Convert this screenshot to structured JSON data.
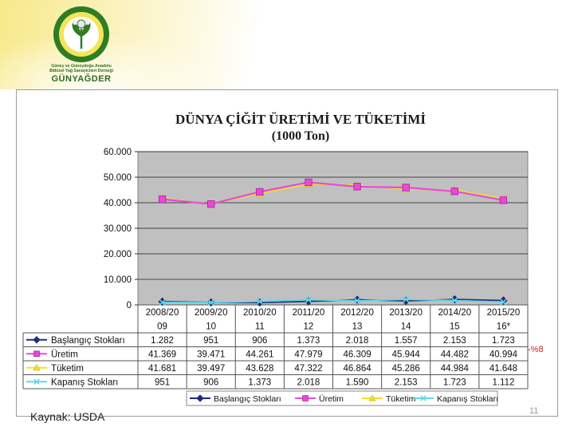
{
  "header": {
    "logo_line1": "Güney ve Güneydoğu Anadolu",
    "logo_line2": "Bitkisel Yağ Sanayicileri Derneği",
    "logo_brand": "GÜNYAĞDER"
  },
  "source": "Kaynak: USDA",
  "side_note": "-%8",
  "page_number": "11",
  "colors": {
    "plot_bg": "#c0c0c0",
    "baslangic": "#1f2f7a",
    "uretim": "#e64ad6",
    "tuketim": "#f0e030",
    "kapanis": "#66d6e8",
    "title": "#1a1a1a"
  },
  "chart_data": {
    "type": "line",
    "title_line1": "DÜNYA ÇİĞİT ÜRETİMİ VE TÜKETİMİ",
    "title_line2": "(1000 Ton)",
    "ylim": [
      0,
      60000
    ],
    "grid": true,
    "y_ticks": [
      "0",
      "10.000",
      "20.000",
      "30.000",
      "40.000",
      "50.000",
      "60.000"
    ],
    "categories": [
      [
        "2008/20",
        "09"
      ],
      [
        "2009/20",
        "10"
      ],
      [
        "2010/20",
        "11"
      ],
      [
        "2011/20",
        "12"
      ],
      [
        "2012/20",
        "13"
      ],
      [
        "2013/20",
        "14"
      ],
      [
        "2014/20",
        "15"
      ],
      [
        "2015/20",
        "16*"
      ]
    ],
    "series": [
      {
        "name": "Başlangıç Stokları",
        "color_key": "baslangic",
        "marker": "diamond",
        "values": [
          1282,
          951,
          906,
          1373,
          2018,
          1557,
          2153,
          1723
        ],
        "labels": [
          "1.282",
          "951",
          "906",
          "1.373",
          "2.018",
          "1.557",
          "2.153",
          "1.723"
        ]
      },
      {
        "name": "Üretim",
        "color_key": "uretim",
        "marker": "square",
        "values": [
          41369,
          39471,
          44261,
          47979,
          46309,
          45944,
          44482,
          40994
        ],
        "labels": [
          "41.369",
          "39.471",
          "44.261",
          "47.979",
          "46.309",
          "45.944",
          "44.482",
          "40.994"
        ]
      },
      {
        "name": "Tüketim",
        "color_key": "tuketim",
        "marker": "triangle",
        "values": [
          41681,
          39497,
          43628,
          47322,
          46864,
          45286,
          44984,
          41648
        ],
        "labels": [
          "41.681",
          "39.497",
          "43.628",
          "47.322",
          "46.864",
          "45.286",
          "44.984",
          "41.648"
        ]
      },
      {
        "name": "Kapanış Stokları",
        "color_key": "kapanis",
        "marker": "x",
        "values": [
          951,
          906,
          1373,
          2018,
          1590,
          2153,
          1723,
          1112
        ],
        "labels": [
          "951",
          "906",
          "1.373",
          "2.018",
          "1.590",
          "2.153",
          "1.723",
          "1.112"
        ]
      }
    ],
    "legend_position": "bottom"
  }
}
